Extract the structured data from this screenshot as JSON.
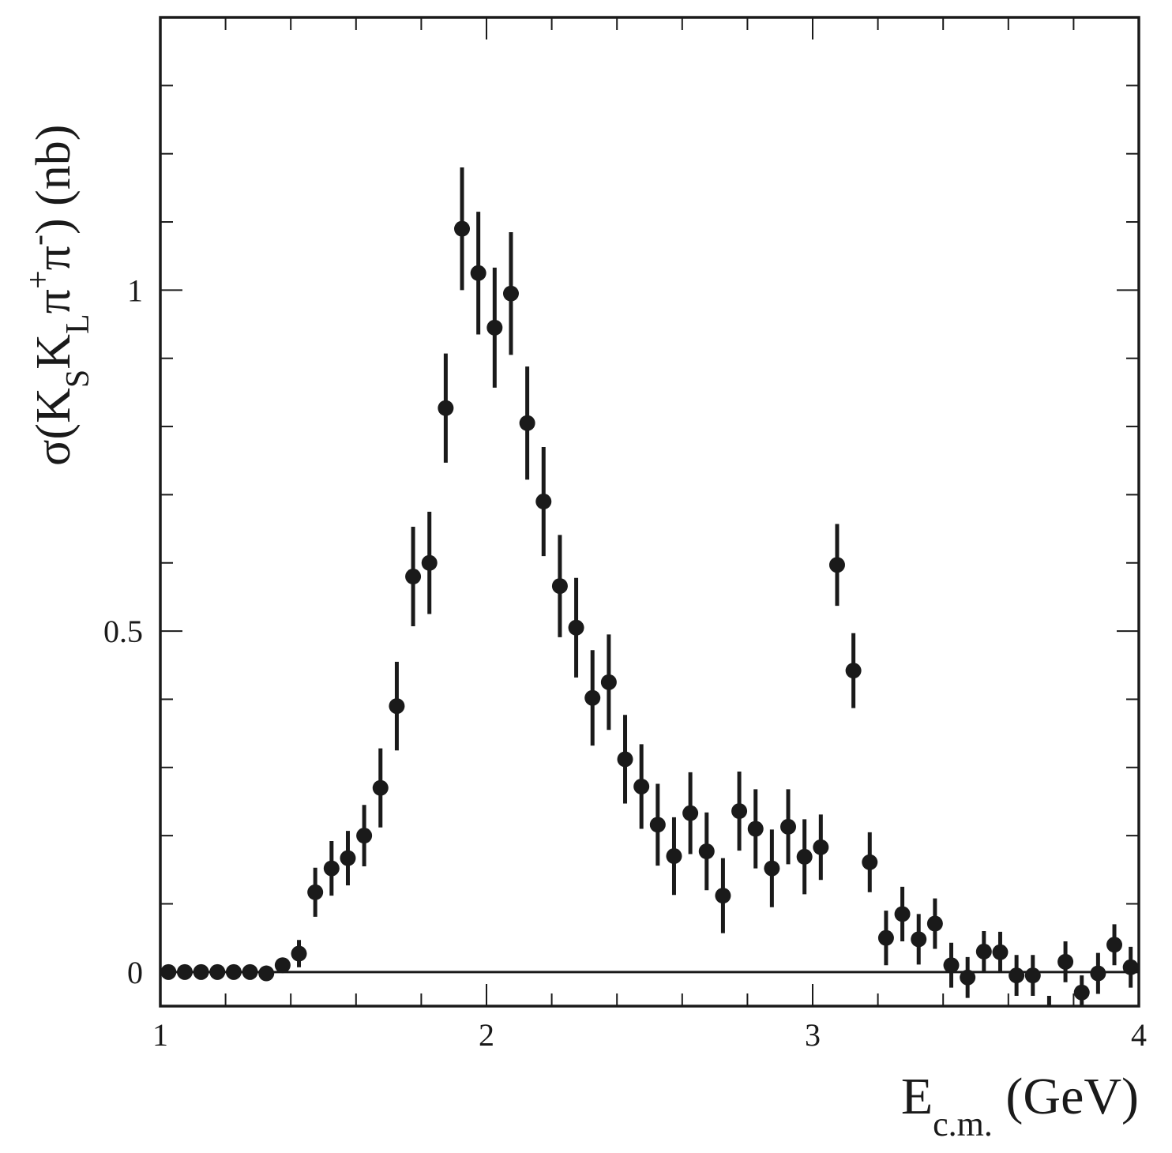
{
  "chart_data": {
    "type": "scatter",
    "title": "",
    "xlabel": {
      "main": "E",
      "sub": "c.m.",
      "unit": " (GeV)"
    },
    "ylabel": {
      "sigma": "σ(K",
      "s1": "S",
      "k2": "K",
      "s2": "L",
      "pi1": "π",
      "sup1": "+",
      "pi2": "π",
      "sup2": "-",
      "tail": ") (nb)"
    },
    "xlim": [
      1,
      4
    ],
    "ylim": [
      -0.05,
      1.4
    ],
    "x_ticks": [
      1,
      2,
      3,
      4
    ],
    "x_tick_labels": [
      "1",
      "2",
      "3",
      "4"
    ],
    "x_minor_step": 0.2,
    "y_ticks": [
      0,
      0.5,
      1
    ],
    "y_tick_labels": [
      "0",
      "0.5",
      "1"
    ],
    "y_minor_step": 0.1,
    "grid": false,
    "reference_line_y": 0,
    "marker_color": "#1a1a1a",
    "points": [
      {
        "x": 1.025,
        "y": 0.0,
        "err": 0.0
      },
      {
        "x": 1.075,
        "y": 0.0,
        "err": 0.0
      },
      {
        "x": 1.125,
        "y": 0.0,
        "err": 0.0
      },
      {
        "x": 1.175,
        "y": 0.0,
        "err": 0.0
      },
      {
        "x": 1.225,
        "y": 0.0,
        "err": 0.0
      },
      {
        "x": 1.275,
        "y": 0.0,
        "err": 0.0
      },
      {
        "x": 1.325,
        "y": -0.002,
        "err": 0.0
      },
      {
        "x": 1.375,
        "y": 0.01,
        "err": 0.01
      },
      {
        "x": 1.425,
        "y": 0.027,
        "err": 0.02
      },
      {
        "x": 1.475,
        "y": 0.117,
        "err": 0.036
      },
      {
        "x": 1.525,
        "y": 0.152,
        "err": 0.04
      },
      {
        "x": 1.575,
        "y": 0.167,
        "err": 0.04
      },
      {
        "x": 1.625,
        "y": 0.2,
        "err": 0.045
      },
      {
        "x": 1.675,
        "y": 0.27,
        "err": 0.058
      },
      {
        "x": 1.725,
        "y": 0.39,
        "err": 0.065
      },
      {
        "x": 1.775,
        "y": 0.58,
        "err": 0.073
      },
      {
        "x": 1.825,
        "y": 0.6,
        "err": 0.075
      },
      {
        "x": 1.875,
        "y": 0.827,
        "err": 0.08
      },
      {
        "x": 1.925,
        "y": 1.09,
        "err": 0.09
      },
      {
        "x": 1.975,
        "y": 1.025,
        "err": 0.09
      },
      {
        "x": 2.025,
        "y": 0.945,
        "err": 0.088
      },
      {
        "x": 2.075,
        "y": 0.995,
        "err": 0.09
      },
      {
        "x": 2.125,
        "y": 0.805,
        "err": 0.083
      },
      {
        "x": 2.175,
        "y": 0.69,
        "err": 0.08
      },
      {
        "x": 2.225,
        "y": 0.566,
        "err": 0.075
      },
      {
        "x": 2.275,
        "y": 0.505,
        "err": 0.073
      },
      {
        "x": 2.325,
        "y": 0.402,
        "err": 0.07
      },
      {
        "x": 2.375,
        "y": 0.425,
        "err": 0.07
      },
      {
        "x": 2.425,
        "y": 0.312,
        "err": 0.065
      },
      {
        "x": 2.475,
        "y": 0.272,
        "err": 0.062
      },
      {
        "x": 2.525,
        "y": 0.216,
        "err": 0.06
      },
      {
        "x": 2.575,
        "y": 0.17,
        "err": 0.057
      },
      {
        "x": 2.625,
        "y": 0.233,
        "err": 0.06
      },
      {
        "x": 2.675,
        "y": 0.177,
        "err": 0.057
      },
      {
        "x": 2.725,
        "y": 0.112,
        "err": 0.055
      },
      {
        "x": 2.775,
        "y": 0.236,
        "err": 0.058
      },
      {
        "x": 2.825,
        "y": 0.21,
        "err": 0.058
      },
      {
        "x": 2.875,
        "y": 0.152,
        "err": 0.057
      },
      {
        "x": 2.925,
        "y": 0.213,
        "err": 0.055
      },
      {
        "x": 2.975,
        "y": 0.169,
        "err": 0.055
      },
      {
        "x": 3.025,
        "y": 0.183,
        "err": 0.048
      },
      {
        "x": 3.075,
        "y": 0.597,
        "err": 0.06
      },
      {
        "x": 3.125,
        "y": 0.442,
        "err": 0.055
      },
      {
        "x": 3.175,
        "y": 0.161,
        "err": 0.044
      },
      {
        "x": 3.225,
        "y": 0.05,
        "err": 0.04
      },
      {
        "x": 3.275,
        "y": 0.085,
        "err": 0.04
      },
      {
        "x": 3.325,
        "y": 0.048,
        "err": 0.037
      },
      {
        "x": 3.375,
        "y": 0.071,
        "err": 0.037
      },
      {
        "x": 3.425,
        "y": 0.01,
        "err": 0.033
      },
      {
        "x": 3.475,
        "y": -0.008,
        "err": 0.03
      },
      {
        "x": 3.525,
        "y": 0.03,
        "err": 0.03
      },
      {
        "x": 3.575,
        "y": 0.029,
        "err": 0.03
      },
      {
        "x": 3.625,
        "y": -0.005,
        "err": 0.03
      },
      {
        "x": 3.675,
        "y": -0.005,
        "err": 0.03
      },
      {
        "x": 3.725,
        "y": -0.09,
        "err": 0.055
      },
      {
        "x": 3.775,
        "y": 0.015,
        "err": 0.03
      },
      {
        "x": 3.825,
        "y": -0.03,
        "err": 0.025
      },
      {
        "x": 3.875,
        "y": -0.002,
        "err": 0.03
      },
      {
        "x": 3.925,
        "y": 0.04,
        "err": 0.03
      },
      {
        "x": 3.975,
        "y": 0.007,
        "err": 0.03
      }
    ]
  }
}
